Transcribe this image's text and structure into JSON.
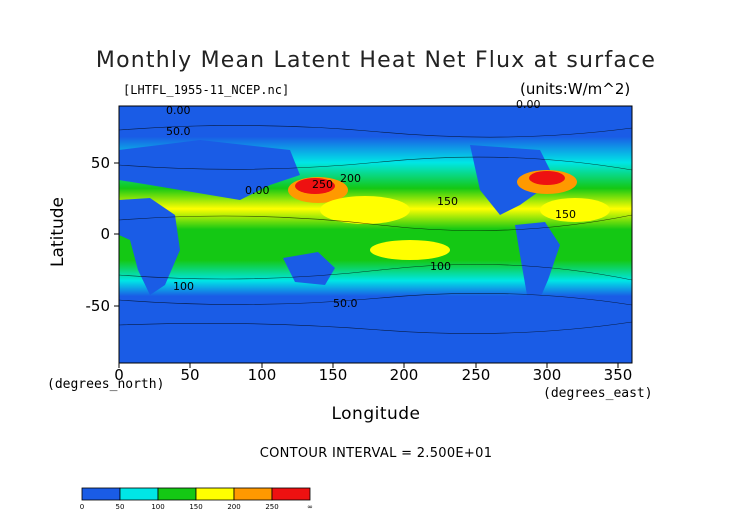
{
  "title": "Monthly Mean Latent Heat Net Flux at surface",
  "subtitle_left": "[LHTFL_1955-11_NCEP.nc]",
  "subtitle_right": "(units:W/m^2)",
  "contour_interval": "CONTOUR INTERVAL = 2.500E+01",
  "palette": {
    "blue": "#1a5ce6",
    "cyan": "#00e6e6",
    "green": "#14c814",
    "yellow": "#ffff00",
    "orange": "#ff9900",
    "red": "#ee1111"
  },
  "chart_data": {
    "type": "heatmap",
    "title": "Monthly Mean Latent Heat Net Flux at surface",
    "xlabel": "Longitude",
    "ylabel": "Latitude",
    "x_unit": "(degrees_east)",
    "y_unit": "(degrees_north)",
    "xlim": [
      0,
      360
    ],
    "ylim": [
      -90,
      90
    ],
    "x_ticks": [
      0,
      50,
      100,
      150,
      200,
      250,
      300,
      350
    ],
    "y_ticks": [
      50,
      0,
      -50
    ],
    "contour_interval": 25,
    "colorbar": {
      "levels": [
        0,
        50,
        100,
        150,
        200,
        250
      ],
      "labels": [
        "0",
        "50",
        "100",
        "150",
        "200",
        "250",
        "∞"
      ],
      "top_label": "∞"
    },
    "contour_labels": [
      "0.00",
      "50.0",
      "0.00",
      "100",
      "150",
      "200",
      "250",
      "50.0",
      "150",
      "100",
      "0.00"
    ],
    "bands": [
      {
        "lat": [
          60,
          90
        ],
        "value": 25
      },
      {
        "lat": [
          45,
          60
        ],
        "value": 50
      },
      {
        "lat": [
          30,
          45
        ],
        "value": 125
      },
      {
        "lat": [
          -10,
          30
        ],
        "value": 150
      },
      {
        "lat": [
          -30,
          -10
        ],
        "value": 125
      },
      {
        "lat": [
          -45,
          -30
        ],
        "value": 75
      },
      {
        "lat": [
          -90,
          -45
        ],
        "value": 25
      }
    ],
    "hotspots": [
      {
        "lon": [
          122,
          152
        ],
        "lat": [
          30,
          42
        ],
        "value": 250
      },
      {
        "lon": [
          282,
          310
        ],
        "lat": [
          34,
          46
        ],
        "value": 250
      }
    ]
  }
}
